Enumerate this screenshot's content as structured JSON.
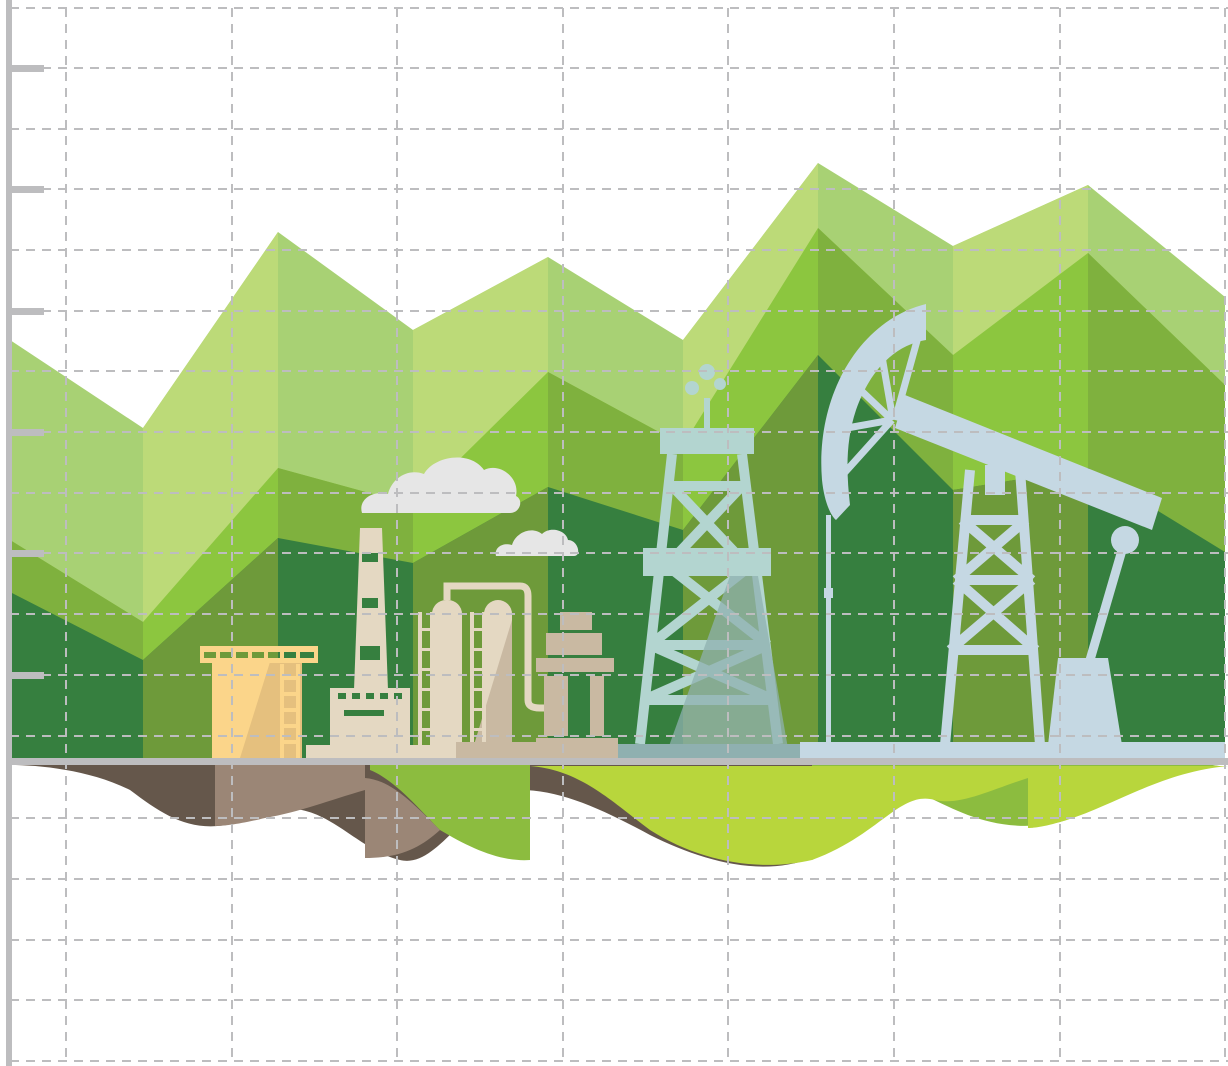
{
  "illustration": {
    "kind": "industrial-landscape-on-grid",
    "elements": [
      "mountain-range",
      "oil-storage-tank",
      "factory-chimney",
      "refinery-columns",
      "oil-derrick",
      "pumpjack",
      "clouds",
      "underground-soil-layers"
    ]
  },
  "colors": {
    "background": "#ffffff",
    "grid_line": "#bdbdbf",
    "axis": "#bdbdbf",
    "mountain_light": "#bcda78",
    "mountain_pale": "#a8d174",
    "mountain_mid": "#8cc63f",
    "mountain_olive": "#7fb13e",
    "mountain_dark_olive": "#6e9a3a",
    "mountain_dark": "#367f3f",
    "tank": "#fbd58a",
    "tank_shade": "#e5c07e",
    "factory": "#e4d8c2",
    "factory_shade": "#c9b9a2",
    "derrick": "#b3d5d0",
    "derrick_shade": "#8fb0b0",
    "pumpjack": "#c5d8e3",
    "cloud": "#e6e6e6",
    "soil_dark": "#65574b",
    "soil_light": "#9b8676",
    "ground_green": "#8cbc3f",
    "ground_lime": "#b8d63c"
  }
}
